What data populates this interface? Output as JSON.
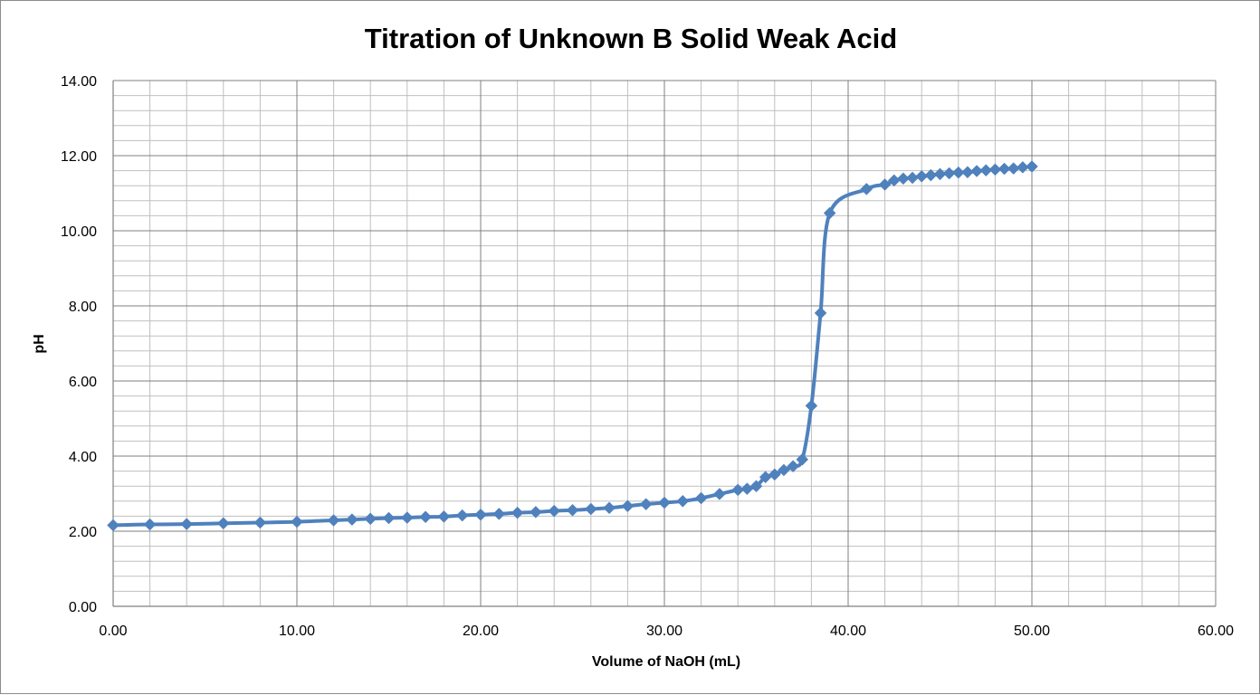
{
  "chart_data": {
    "type": "line",
    "title": "Titration of Unknown B Solid Weak Acid",
    "xlabel": "Volume of NaOH (mL)",
    "ylabel": "pH",
    "xlim": [
      0,
      60
    ],
    "ylim": [
      0,
      14
    ],
    "x_ticks": [
      "0.00",
      "10.00",
      "20.00",
      "30.00",
      "40.00",
      "50.00",
      "60.00"
    ],
    "y_ticks": [
      "0.00",
      "2.00",
      "4.00",
      "6.00",
      "8.00",
      "10.00",
      "12.00",
      "14.00"
    ],
    "x_major_step": 10,
    "x_minor_step": 2,
    "y_major_step": 2,
    "y_minor_step": 0.4,
    "grid": true,
    "legend": "none",
    "marker": "diamond",
    "series_color": "#4f81bd",
    "x": [
      0,
      2,
      4,
      6,
      8,
      10,
      12,
      13,
      14,
      15,
      16,
      17,
      18,
      19,
      20,
      21,
      22,
      23,
      24,
      25,
      26,
      27,
      28,
      29,
      30,
      31,
      32,
      33,
      34,
      34.5,
      35,
      35.5,
      36,
      36.5,
      37,
      37.5,
      38,
      38.5,
      39,
      41,
      42,
      42.5,
      43,
      43.5,
      44,
      44.5,
      45,
      45.5,
      46,
      46.5,
      47,
      47.5,
      48,
      48.5,
      49,
      49.5,
      50
    ],
    "y": [
      2.16,
      2.18,
      2.19,
      2.21,
      2.23,
      2.25,
      2.29,
      2.31,
      2.33,
      2.35,
      2.36,
      2.38,
      2.39,
      2.42,
      2.44,
      2.46,
      2.49,
      2.51,
      2.54,
      2.56,
      2.59,
      2.62,
      2.67,
      2.72,
      2.76,
      2.8,
      2.88,
      2.99,
      3.1,
      3.13,
      3.2,
      3.44,
      3.51,
      3.63,
      3.73,
      3.91,
      5.34,
      7.81,
      10.47,
      11.11,
      11.23,
      11.34,
      11.39,
      11.41,
      11.45,
      11.48,
      11.51,
      11.53,
      11.55,
      11.56,
      11.59,
      11.61,
      11.63,
      11.65,
      11.66,
      11.69,
      11.71
    ]
  }
}
